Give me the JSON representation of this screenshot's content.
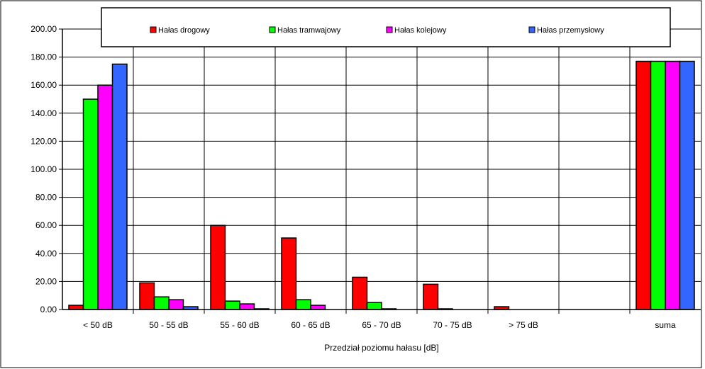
{
  "chart_data": {
    "type": "bar",
    "title": "",
    "xlabel": "Przedział poziomu hałasu [dB]",
    "ylabel": "",
    "ylim": [
      0,
      200
    ],
    "yticks": [
      "0.00",
      "20.00",
      "40.00",
      "60.00",
      "80.00",
      "100.00",
      "120.00",
      "140.00",
      "160.00",
      "180.00",
      "200.00"
    ],
    "grid": true,
    "legend_position": "top",
    "categories": [
      "< 50 dB",
      "50 - 55 dB",
      "55 - 60 dB",
      "60 - 65 dB",
      "65 - 70 dB",
      "70 - 75 dB",
      "> 75 dB",
      "",
      "suma"
    ],
    "series": [
      {
        "name": "Hałas drogowy",
        "color": "#ff0000",
        "values": [
          3,
          19,
          60,
          51,
          23,
          18,
          2,
          0,
          177
        ]
      },
      {
        "name": "Hałas tramwajowy",
        "color": "#00ff00",
        "values": [
          150,
          9,
          6,
          7,
          5,
          0.5,
          0,
          0,
          177
        ]
      },
      {
        "name": "Hałas kolejowy",
        "color": "#ff00ff",
        "values": [
          160,
          7,
          4,
          3,
          0.5,
          0,
          0,
          0,
          177
        ]
      },
      {
        "name": "Hałas przemysłowy",
        "color": "#3366ff",
        "values": [
          175,
          2,
          0.5,
          0,
          0,
          0,
          0,
          0,
          177
        ]
      }
    ]
  }
}
